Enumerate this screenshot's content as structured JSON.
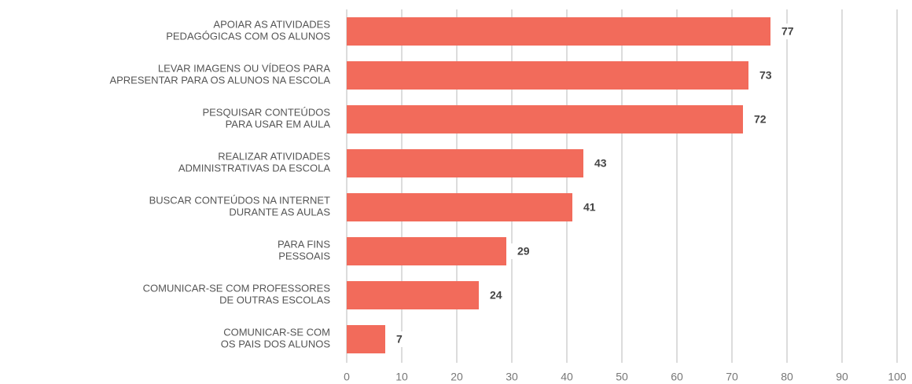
{
  "chart_data": {
    "type": "barh",
    "categories": [
      "APOIAR AS ATIVIDADES\nPEDAGÓGICAS COM OS ALUNOS",
      "LEVAR IMAGENS OU VÍDEOS PARA\nAPRESENTAR PARA OS ALUNOS NA ESCOLA",
      "PESQUISAR CONTEÚDOS\nPARA USAR EM AULA",
      "REALIZAR ATIVIDADES\nADMINISTRATIVAS DA ESCOLA",
      "BUSCAR CONTEÚDOS NA INTERNET\nDURANTE AS AULAS",
      "PARA FINS\nPESSOAIS",
      "COMUNICAR-SE COM PROFESSORES\nDE OUTRAS ESCOLAS",
      "COMUNICAR-SE COM\nOS PAIS DOS ALUNOS"
    ],
    "values": [
      77,
      73,
      72,
      43,
      41,
      29,
      24,
      7
    ],
    "color": "#f26b5b",
    "xlim": [
      0,
      100
    ],
    "xticks": [
      0,
      10,
      20,
      30,
      40,
      50,
      60,
      70,
      80,
      90,
      100
    ],
    "grid": true
  }
}
